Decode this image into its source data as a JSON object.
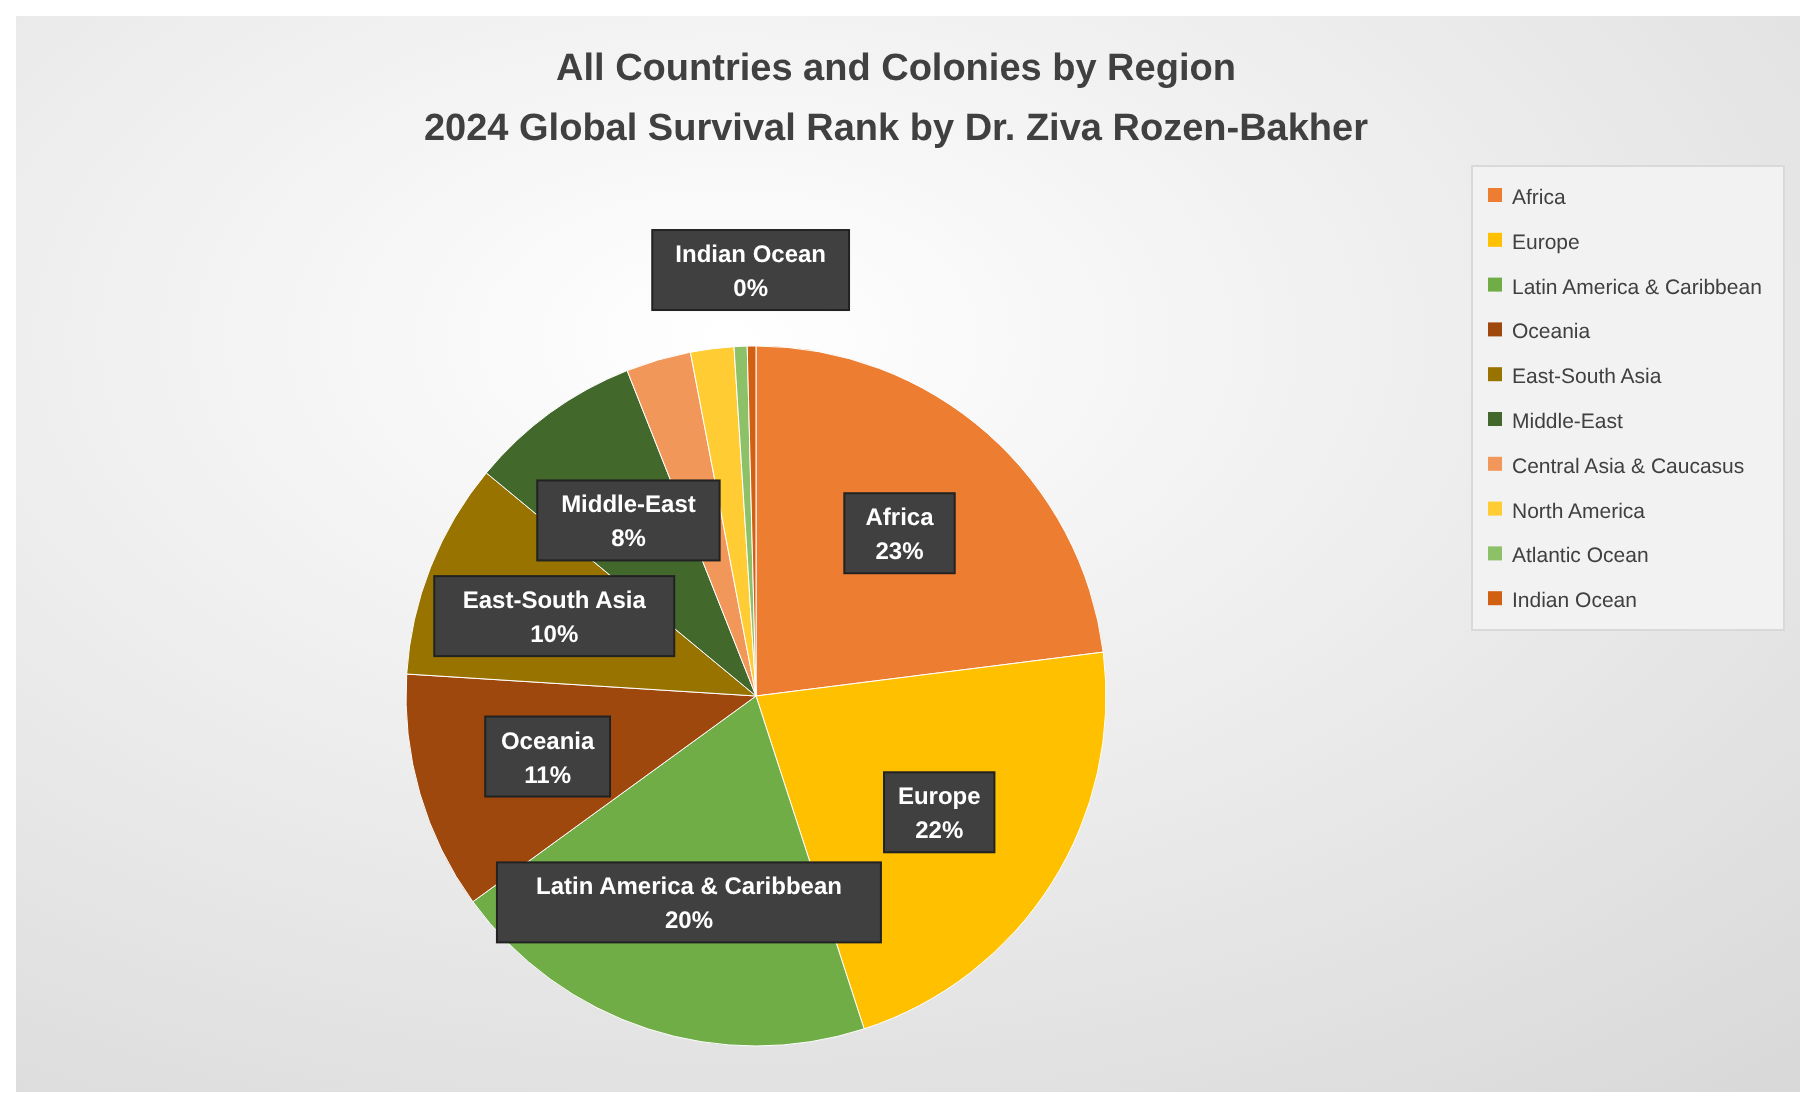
{
  "chart_data": {
    "type": "pie",
    "title": "All Countries and Colonies by Region",
    "subtitle": "2024 Global Survival Rank by Dr. Ziva Rozen-Bakher",
    "categories": [
      "Africa",
      "Europe",
      "Latin America & Caribbean",
      "Oceania",
      "East-South Asia",
      "Middle-East",
      "Central Asia & Caucasus",
      "North America",
      "Atlantic Ocean",
      "Indian Ocean"
    ],
    "values": [
      23,
      22,
      20,
      11,
      10,
      8,
      3,
      2,
      0.6,
      0.4
    ],
    "value_labels": [
      "23%",
      "22%",
      "20%",
      "11%",
      "10%",
      "8%",
      null,
      null,
      null,
      "0%"
    ],
    "colors": [
      "#ed7d31",
      "#ffc000",
      "#70ad47",
      "#9e480e",
      "#997300",
      "#43682b",
      "#f1975a",
      "#ffcd33",
      "#8cc168",
      "#d26012"
    ],
    "legend": "right"
  }
}
